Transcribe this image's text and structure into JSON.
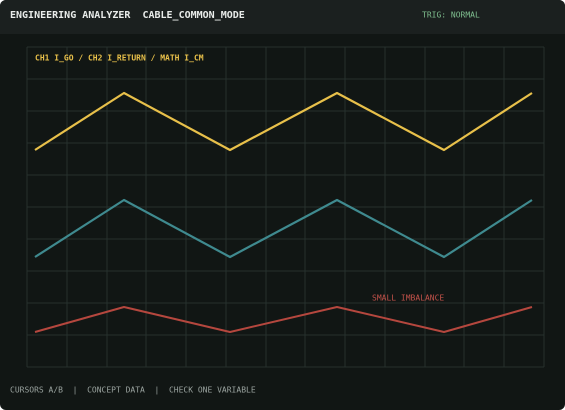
{
  "header": {
    "title": "ENGINEERING ANALYZER  CABLE_COMMON_MODE",
    "status": "TRIG: NORMAL"
  },
  "display": {
    "trace_label": "CH1 I_GO / CH2 I_RETURN / MATH I_CM",
    "annotation": "SMALL IMBALANCE"
  },
  "footer": {
    "text": "CURSORS A/B  |  CONCEPT DATA  |  CHECK ONE VARIABLE"
  }
}
